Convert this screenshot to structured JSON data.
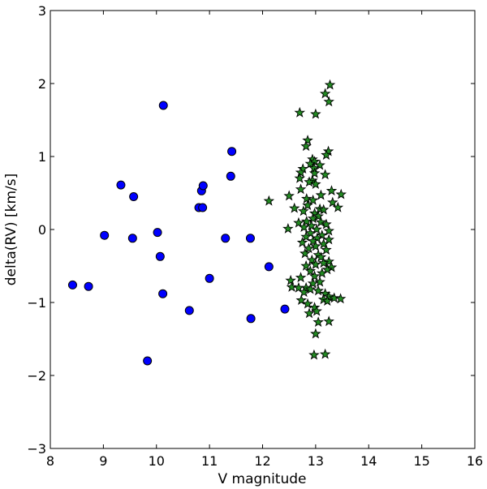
{
  "chart_data": {
    "type": "scatter",
    "title": "",
    "xlabel": "V magnitude",
    "ylabel": "delta(RV) [km/s]",
    "xlim": [
      8,
      16
    ],
    "ylim": [
      -3,
      3
    ],
    "xticks": [
      8,
      9,
      10,
      11,
      12,
      13,
      14,
      15,
      16
    ],
    "yticks": [
      -3,
      -2,
      -1,
      0,
      1,
      2,
      3
    ],
    "ytick_labels": [
      "−3",
      "−2",
      "−1",
      "0",
      "1",
      "2",
      "3"
    ],
    "grid": false,
    "legend": null,
    "series": [
      {
        "marker": "circle",
        "color": "#0000ff",
        "points": [
          [
            8.42,
            -0.76
          ],
          [
            8.72,
            -0.78
          ],
          [
            9.02,
            -0.08
          ],
          [
            9.33,
            0.61
          ],
          [
            9.55,
            -0.12
          ],
          [
            9.57,
            0.45
          ],
          [
            9.83,
            -1.8
          ],
          [
            10.02,
            -0.04
          ],
          [
            10.07,
            -0.37
          ],
          [
            10.12,
            -0.88
          ],
          [
            10.13,
            1.7
          ],
          [
            10.62,
            -1.11
          ],
          [
            10.8,
            0.3
          ],
          [
            10.85,
            0.53
          ],
          [
            10.87,
            0.3
          ],
          [
            10.88,
            0.6
          ],
          [
            11.0,
            -0.67
          ],
          [
            11.3,
            -0.12
          ],
          [
            11.4,
            0.73
          ],
          [
            11.42,
            1.07
          ],
          [
            11.77,
            -0.12
          ],
          [
            11.78,
            -1.22
          ],
          [
            12.12,
            -0.51
          ],
          [
            12.42,
            -1.09
          ]
        ]
      },
      {
        "marker": "star",
        "color": "#228b22",
        "points": [
          [
            13.27,
            1.98
          ],
          [
            13.18,
            1.86
          ],
          [
            13.25,
            1.75
          ],
          [
            12.7,
            1.6
          ],
          [
            13.0,
            1.58
          ],
          [
            12.85,
            1.22
          ],
          [
            12.82,
            1.14
          ],
          [
            13.24,
            1.07
          ],
          [
            13.2,
            1.02
          ],
          [
            12.94,
            0.96
          ],
          [
            12.98,
            0.93
          ],
          [
            12.9,
            0.9
          ],
          [
            13.08,
            0.88
          ],
          [
            12.97,
            0.84
          ],
          [
            12.76,
            0.83
          ],
          [
            12.72,
            0.78
          ],
          [
            12.98,
            0.77
          ],
          [
            13.18,
            0.75
          ],
          [
            12.7,
            0.7
          ],
          [
            12.94,
            0.67
          ],
          [
            12.88,
            0.65
          ],
          [
            13.0,
            0.62
          ],
          [
            12.72,
            0.55
          ],
          [
            13.3,
            0.53
          ],
          [
            13.48,
            0.48
          ],
          [
            13.1,
            0.47
          ],
          [
            12.5,
            0.46
          ],
          [
            12.83,
            0.42
          ],
          [
            12.95,
            0.4
          ],
          [
            12.12,
            0.39
          ],
          [
            13.32,
            0.37
          ],
          [
            13.42,
            0.3
          ],
          [
            12.85,
            0.33
          ],
          [
            12.6,
            0.29
          ],
          [
            13.08,
            0.28
          ],
          [
            13.15,
            0.27
          ],
          [
            12.77,
            0.25
          ],
          [
            12.98,
            0.22
          ],
          [
            13.05,
            0.18
          ],
          [
            12.95,
            0.15
          ],
          [
            12.83,
            0.11
          ],
          [
            13.1,
            0.1
          ],
          [
            12.68,
            0.09
          ],
          [
            13.2,
            0.07
          ],
          [
            12.92,
            0.05
          ],
          [
            12.78,
            0.03
          ],
          [
            12.48,
            0.01
          ],
          [
            13.02,
            0.0
          ],
          [
            13.25,
            -0.02
          ],
          [
            12.9,
            -0.05
          ],
          [
            13.12,
            -0.08
          ],
          [
            12.82,
            -0.1
          ],
          [
            13.03,
            -0.12
          ],
          [
            13.25,
            -0.14
          ],
          [
            12.95,
            -0.16
          ],
          [
            12.75,
            -0.18
          ],
          [
            13.15,
            -0.2
          ],
          [
            13.0,
            -0.23
          ],
          [
            12.87,
            -0.26
          ],
          [
            13.2,
            -0.28
          ],
          [
            12.8,
            -0.33
          ],
          [
            13.05,
            -0.35
          ],
          [
            13.1,
            -0.38
          ],
          [
            12.93,
            -0.42
          ],
          [
            13.25,
            -0.44
          ],
          [
            13.15,
            -0.46
          ],
          [
            13.0,
            -0.48
          ],
          [
            12.82,
            -0.5
          ],
          [
            13.3,
            -0.52
          ],
          [
            13.22,
            -0.55
          ],
          [
            12.9,
            -0.57
          ],
          [
            13.12,
            -0.6
          ],
          [
            12.98,
            -0.64
          ],
          [
            12.72,
            -0.66
          ],
          [
            12.53,
            -0.7
          ],
          [
            13.08,
            -0.72
          ],
          [
            12.95,
            -0.74
          ],
          [
            12.55,
            -0.79
          ],
          [
            12.68,
            -0.8
          ],
          [
            12.82,
            -0.8
          ],
          [
            12.9,
            -0.82
          ],
          [
            13.05,
            -0.84
          ],
          [
            12.78,
            -0.86
          ],
          [
            13.18,
            -0.88
          ],
          [
            13.25,
            -0.92
          ],
          [
            13.35,
            -0.94
          ],
          [
            13.47,
            -0.95
          ],
          [
            13.15,
            -0.96
          ],
          [
            13.22,
            -0.98
          ],
          [
            12.73,
            -0.97
          ],
          [
            12.85,
            -1.02
          ],
          [
            12.98,
            -1.07
          ],
          [
            13.02,
            -1.12
          ],
          [
            12.88,
            -1.15
          ],
          [
            13.25,
            -1.26
          ],
          [
            13.05,
            -1.27
          ],
          [
            13.0,
            -1.43
          ],
          [
            12.97,
            -1.72
          ],
          [
            13.18,
            -1.71
          ]
        ]
      }
    ]
  }
}
